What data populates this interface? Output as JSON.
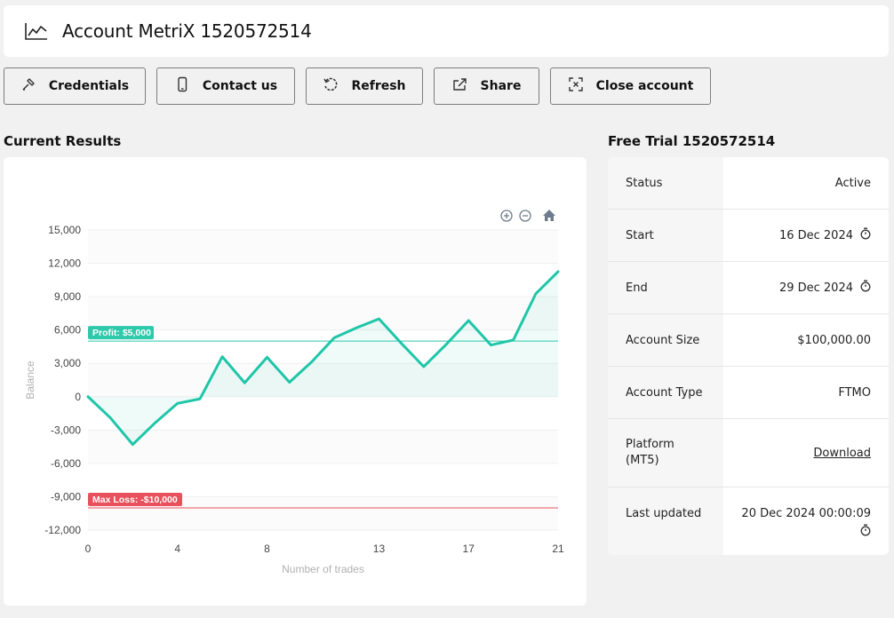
{
  "header": {
    "title": "Account MetriX 1520572514",
    "icon": "chart-line-icon"
  },
  "toolbar": {
    "buttons": [
      {
        "label": "Credentials",
        "icon": "key-icon"
      },
      {
        "label": "Contact us",
        "icon": "phone-icon"
      },
      {
        "label": "Refresh",
        "icon": "refresh-icon"
      },
      {
        "label": "Share",
        "icon": "share-icon"
      },
      {
        "label": "Close account",
        "icon": "close-account-icon"
      }
    ]
  },
  "results": {
    "title": "Current Results"
  },
  "info": {
    "title": "Free Trial 1520572514",
    "rows": [
      {
        "label": "Status",
        "value": "Active"
      },
      {
        "label": "Start",
        "value": "16 Dec 2024"
      },
      {
        "label": "End",
        "value": "29 Dec 2024"
      },
      {
        "label": "Account Size",
        "value": "$100,000.00"
      },
      {
        "label": "Account Type",
        "value": "FTMO"
      },
      {
        "label": "Platform (MT5)",
        "value": "Download"
      },
      {
        "label": "Last updated",
        "value": "20 Dec 2024 00:00:09"
      }
    ]
  },
  "colors": {
    "line": "#1fc6a8",
    "profit": "#2ec8aa",
    "loss": "#e8505b"
  },
  "chart_data": {
    "type": "area",
    "xlabel": "Number of trades",
    "ylabel": "Balance",
    "xlim": [
      0,
      21
    ],
    "ylim": [
      -12000,
      15000
    ],
    "yticks": [
      15000,
      12000,
      9000,
      6000,
      3000,
      0,
      -3000,
      -6000,
      -9000,
      -12000
    ],
    "xticks": [
      0,
      4,
      8,
      13,
      17,
      21
    ],
    "x": [
      0,
      1,
      2,
      3,
      4,
      5,
      6,
      7,
      8,
      9,
      10,
      11,
      12,
      13,
      14,
      15,
      16,
      17,
      18,
      19,
      20,
      21
    ],
    "values": [
      0,
      -1900,
      -4300,
      -2350,
      -600,
      -200,
      3600,
      1250,
      3550,
      1300,
      3150,
      5300,
      6200,
      7000,
      4800,
      2700,
      4700,
      6850,
      4650,
      5100,
      9250,
      11250
    ],
    "annotations": [
      {
        "label": "Profit: $5,000",
        "y": 5000,
        "kind": "profit"
      },
      {
        "label": "Max Loss: -$10,000",
        "y": -10000,
        "kind": "loss"
      }
    ],
    "toolbar_icons": [
      "zoom-in-icon",
      "zoom-out-icon",
      "home-icon"
    ],
    "grid": true
  }
}
